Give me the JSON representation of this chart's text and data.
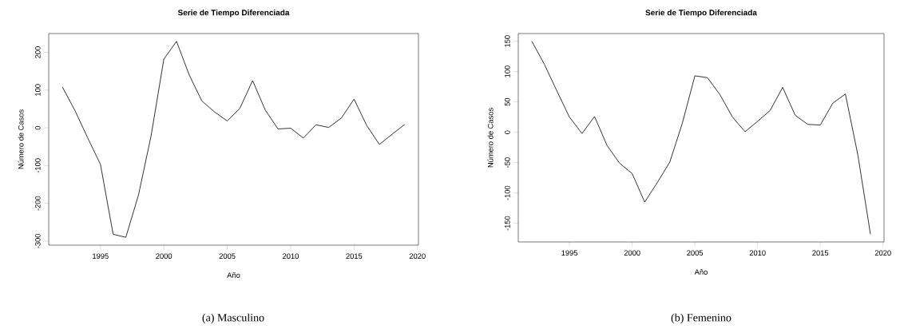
{
  "chart_data": [
    {
      "type": "line",
      "title": "Serie de Tiempo Diferenciada",
      "xlabel": "Año",
      "ylabel": "Número de Casos",
      "x": [
        1992,
        1993,
        1994,
        1995,
        1996,
        1997,
        1998,
        1999,
        2000,
        2001,
        2002,
        2003,
        2004,
        2005,
        2006,
        2007,
        2008,
        2009,
        2010,
        2011,
        2012,
        2013,
        2014,
        2015,
        2016,
        2017,
        2018,
        2019
      ],
      "series": [
        {
          "color": "#000000",
          "values": [
            108,
            45,
            -27,
            -97,
            -282,
            -290,
            -178,
            -20,
            182,
            229,
            140,
            71,
            42,
            18,
            52,
            125,
            47,
            -3,
            -1,
            -27,
            8,
            1,
            26,
            76,
            6,
            -44,
            -17,
            9
          ]
        }
      ],
      "xlim": [
        1990.92,
        2020.08
      ],
      "xticks": [
        1995,
        2000,
        2005,
        2010,
        2015,
        2020
      ],
      "ylim": [
        -310.76,
        249.76
      ],
      "yticks": [
        -300,
        -200,
        -100,
        0,
        100,
        200
      ],
      "marker": "none",
      "line_style": "solid",
      "annotations": [
        "(a) Masculino"
      ]
    },
    {
      "type": "line",
      "title": "Serie de Tiempo Diferenciada",
      "xlabel": "Año",
      "ylabel": "Número de Casos",
      "x": [
        1992,
        1993,
        1994,
        1995,
        1996,
        1997,
        1998,
        1999,
        2000,
        2001,
        2002,
        2003,
        2004,
        2005,
        2006,
        2007,
        2008,
        2009,
        2010,
        2011,
        2012,
        2013,
        2014,
        2015,
        2016,
        2017,
        2018,
        2019
      ],
      "series": [
        {
          "color": "#000000",
          "values": [
            150,
            112,
            68,
            25,
            -2,
            26,
            -22,
            -51,
            -68,
            -115,
            -83,
            -49,
            15,
            93,
            90,
            62,
            25,
            1,
            18,
            36,
            74,
            28,
            13,
            12,
            48,
            63,
            -38,
            -168
          ]
        }
      ],
      "xlim": [
        1990.92,
        2020.08
      ],
      "xticks": [
        1995,
        2000,
        2005,
        2010,
        2015,
        2020
      ],
      "ylim": [
        -180.7,
        162.7
      ],
      "yticks": [
        -150,
        -100,
        -50,
        0,
        50,
        100,
        150
      ],
      "marker": "none",
      "line_style": "solid",
      "annotations": [
        "(b) Femenino"
      ]
    }
  ]
}
